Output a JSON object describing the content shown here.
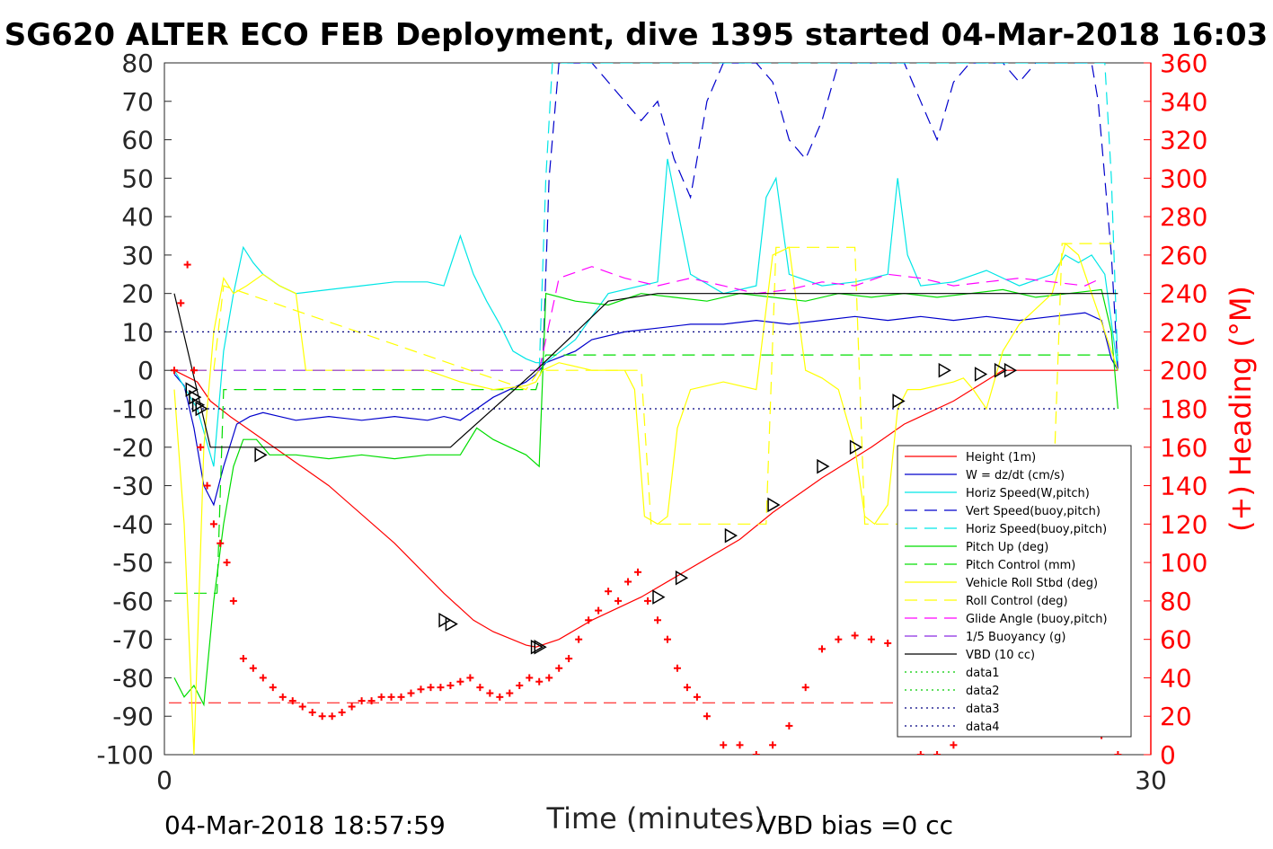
{
  "chart_data": {
    "type": "line",
    "title": "SG620 ALTER ECO FEB Deployment, dive 1395 started 04-Mar-2018 16:03",
    "xlabel": "Time (minutes)",
    "ylabel_right": "(+) Heading (°M)",
    "xlim": [
      0,
      30
    ],
    "ylim": [
      -100,
      80
    ],
    "ylim_right": [
      0,
      360
    ],
    "x_ticks": [
      "0",
      "30"
    ],
    "y_ticks": [
      "80",
      "70",
      "60",
      "50",
      "40",
      "30",
      "20",
      "10",
      "0",
      "-10",
      "-20",
      "-30",
      "-40",
      "-50",
      "-60",
      "-70",
      "-80",
      "-90",
      "-100"
    ],
    "y_ticks_right": [
      "360",
      "340",
      "320",
      "300",
      "280",
      "260",
      "240",
      "220",
      "200",
      "180",
      "160",
      "140",
      "120",
      "100",
      "80",
      "60",
      "40",
      "20",
      "0"
    ],
    "footer_left": "04-Mar-2018 18:57:59",
    "footer_right": "VBD bias =0 cc",
    "legend_position": "lower-right",
    "series": [
      {
        "name": "Height (1m)",
        "color": "#ff0000",
        "style": "solid",
        "x": [
          0.3,
          1.0,
          1.4,
          2.0,
          3.0,
          5.0,
          7.0,
          8.5,
          9.4,
          10.0,
          11.0,
          11.3,
          12.0,
          13.0,
          14.5,
          15.5,
          17.5,
          18.5,
          20.0,
          21.5,
          22.5,
          24.0,
          25.5,
          27.0,
          28.3,
          29.0
        ],
        "y": [
          0,
          -3,
          -8,
          -12,
          -18,
          -30,
          -45,
          -58,
          -65,
          -68,
          -71.5,
          -72,
          -70,
          -65,
          -59,
          -54,
          -44,
          -37,
          -28,
          -20,
          -14,
          -8,
          0,
          0,
          0,
          0
        ]
      },
      {
        "name": "W = dz/dt (cm/s)",
        "color": "#0000cc",
        "style": "solid",
        "x": [
          0.3,
          0.6,
          0.9,
          1.2,
          1.5,
          1.8,
          2.2,
          2.6,
          3.0,
          3.5,
          4.0,
          5,
          6,
          7,
          8,
          8.5,
          9.0,
          9.5,
          10,
          10.5,
          11,
          11.3,
          11.6,
          12.5,
          13,
          14,
          15,
          16,
          17,
          18,
          19,
          20,
          21,
          22,
          23,
          24,
          25,
          26,
          27,
          28,
          28.5,
          28.8,
          29.0
        ],
        "y": [
          -1,
          -4,
          -15,
          -30,
          -35,
          -25,
          -14,
          -12,
          -11,
          -12,
          -13,
          -12,
          -13,
          -12,
          -13,
          -12,
          -13,
          -10,
          -7,
          -5,
          -3,
          -1,
          2,
          5,
          8,
          10,
          11,
          12,
          12,
          13,
          12,
          13,
          14,
          13,
          14,
          13,
          14,
          13,
          14,
          15,
          13,
          3,
          0
        ]
      },
      {
        "name": "Horiz Speed(W,pitch)",
        "color": "#00e6e6",
        "style": "solid",
        "x": [
          0.3,
          1.0,
          1.5,
          1.8,
          2.1,
          2.4,
          2.7,
          3.0,
          3.5,
          4.0,
          5,
          6,
          7,
          8,
          8.5,
          9.0,
          9.4,
          9.8,
          10.2,
          10.6,
          11.0,
          11.3,
          11.6,
          12.5,
          13.5,
          14.5,
          15.0,
          15.3,
          16,
          17,
          18.0,
          18.3,
          18.6,
          19,
          20,
          21,
          22,
          22.3,
          22.6,
          23,
          24,
          25,
          26,
          27,
          27.4,
          27.8,
          28.2,
          28.6,
          29.0
        ],
        "y": [
          0,
          -10,
          -25,
          5,
          20,
          32,
          28,
          25,
          22,
          20,
          21,
          22,
          23,
          23,
          22,
          35,
          25,
          18,
          12,
          5,
          3,
          2,
          2,
          8,
          20,
          22,
          23,
          55,
          25,
          20,
          22,
          45,
          50,
          25,
          22,
          23,
          25,
          50,
          30,
          22,
          23,
          26,
          22,
          25,
          30,
          28,
          30,
          25,
          0
        ]
      },
      {
        "name": "Vert Speed(buoy,pitch)",
        "color": "#0000cc",
        "style": "dashed",
        "x": [
          11.5,
          11.7,
          12.0,
          12.5,
          13.0,
          13.5,
          14.0,
          14.5,
          15.0,
          15.5,
          16.0,
          16.5,
          17.0,
          17.5,
          18.0,
          18.5,
          19.0,
          19.5,
          20.0,
          20.5,
          21.0,
          21.5,
          22.0,
          22.5,
          23.0,
          23.5,
          24.0,
          24.5,
          25.0,
          25.5,
          26.0,
          26.5,
          27.0,
          27.5,
          28.0,
          28.2,
          28.4,
          28.6,
          28.8,
          29.0
        ],
        "y": [
          0,
          50,
          85,
          90,
          80,
          75,
          70,
          65,
          70,
          55,
          45,
          70,
          85,
          90,
          80,
          75,
          60,
          55,
          65,
          85,
          95,
          90,
          85,
          80,
          70,
          60,
          75,
          85,
          90,
          85,
          75,
          80,
          85,
          90,
          85,
          80,
          70,
          50,
          30,
          0
        ]
      },
      {
        "name": "Horiz Speed(buoy,pitch)",
        "color": "#00e6e6",
        "style": "dashed",
        "x": [
          11.4,
          11.6,
          11.8,
          28.6,
          28.8,
          29.0
        ],
        "y": [
          0,
          50,
          95,
          95,
          50,
          0
        ]
      },
      {
        "name": "Pitch Up (deg)",
        "color": "#00dd00",
        "style": "solid",
        "x": [
          0.3,
          0.6,
          0.9,
          1.2,
          1.5,
          1.8,
          2.1,
          2.4,
          2.8,
          3.2,
          4,
          5,
          6,
          7,
          8,
          9.0,
          9.5,
          10,
          10.5,
          11,
          11.4,
          11.6,
          12.5,
          13.5,
          14.5,
          15.5,
          16.5,
          17.5,
          18.5,
          19.5,
          20.5,
          21.5,
          22.5,
          23.5,
          24.5,
          25.5,
          26.5,
          27.5,
          28.5,
          28.8,
          29.0
        ],
        "y": [
          -80,
          -85,
          -82,
          -87,
          -60,
          -40,
          -25,
          -18,
          -18,
          -22,
          -22,
          -23,
          -22,
          -23,
          -22,
          -22,
          -15,
          -18,
          -20,
          -22,
          -25,
          20,
          18,
          17,
          20,
          19,
          18,
          20,
          19,
          18,
          20,
          19,
          20,
          19,
          20,
          21,
          19,
          20,
          21,
          10,
          -10
        ]
      },
      {
        "name": "Pitch Control (mm)",
        "color": "#00dd00",
        "style": "dashed",
        "x": [
          0.3,
          1.6,
          1.8,
          2.2,
          11.3,
          11.6,
          29.0
        ],
        "y": [
          -58,
          -58,
          -5,
          -5,
          -5,
          4,
          4
        ]
      },
      {
        "name": "Vehicle Roll Stbd (deg)",
        "color": "#ffff00",
        "style": "solid",
        "x": [
          0.3,
          0.6,
          0.9,
          1.2,
          1.5,
          1.8,
          2.1,
          2.5,
          3.0,
          3.5,
          4.0,
          4.3,
          5,
          6,
          7,
          8,
          9,
          10,
          11,
          11.3,
          11.5,
          12,
          13,
          14,
          14.3,
          14.6,
          15.0,
          15.3,
          15.6,
          16,
          17,
          18,
          18.5,
          19.0,
          19.5,
          20,
          20.5,
          21.0,
          21.3,
          21.6,
          22.0,
          22.3,
          22.6,
          23,
          24,
          24.3,
          24.6,
          25,
          25.5,
          26,
          27,
          27.4,
          27.8,
          28.2,
          28.6,
          29.0
        ],
        "y": [
          -5,
          -40,
          -100,
          -20,
          10,
          24,
          20,
          22,
          25,
          22,
          20,
          0,
          0,
          0,
          0,
          0,
          -3,
          -5,
          -4,
          -3,
          0,
          2,
          0,
          0,
          -5,
          -38,
          -40,
          -38,
          -15,
          -5,
          -3,
          -5,
          30,
          32,
          0,
          -2,
          -5,
          -20,
          -38,
          -40,
          -35,
          -10,
          -5,
          -5,
          -3,
          -2,
          -5,
          -10,
          5,
          12,
          20,
          33,
          30,
          20,
          10,
          0
        ]
      },
      {
        "name": "Roll Control (deg)",
        "color": "#ffff00",
        "style": "dashed",
        "x": [
          0.3,
          1.5,
          1.8,
          11.0,
          11.4,
          14.5,
          14.8,
          18.3,
          18.6,
          21.0,
          21.3,
          27.0,
          27.3,
          29.0
        ],
        "y": [
          0,
          0,
          22,
          -5,
          0,
          0,
          -40,
          -40,
          32,
          32,
          -40,
          -40,
          33,
          33
        ]
      },
      {
        "name": "Glide Angle (buoy,pitch)",
        "color": "#ff00ff",
        "style": "dashed",
        "x": [
          11.4,
          12.0,
          13,
          14,
          15,
          16,
          17,
          18,
          19,
          20,
          21,
          22,
          23,
          24,
          25,
          26,
          27,
          28,
          28.5
        ],
        "y": [
          0,
          24,
          27,
          24,
          22,
          24,
          22,
          20,
          21,
          23,
          22,
          25,
          24,
          22,
          23,
          24,
          23,
          22,
          24
        ]
      },
      {
        "name": "1/5 Buoyancy (g)",
        "color": "#8a2be2",
        "style": "dashed",
        "x": [
          0.3,
          11.4
        ],
        "y": [
          0,
          0
        ]
      },
      {
        "name": "VBD (10 cc)",
        "color": "#000000",
        "style": "solid",
        "x": [
          0.3,
          1.4,
          8.7,
          11.3,
          13.5,
          15.0,
          29.0
        ],
        "y": [
          20,
          -20,
          -20,
          0,
          18,
          20,
          20
        ]
      },
      {
        "name": "data1",
        "color": "#00cc00",
        "style": "dotted",
        "x": [],
        "y": []
      },
      {
        "name": "data2",
        "color": "#00cc00",
        "style": "dotted",
        "x": [],
        "y": []
      },
      {
        "name": "data3",
        "color": "#000080",
        "style": "dotted",
        "x": [
          0,
          29
        ],
        "y": [
          10,
          10
        ]
      },
      {
        "name": "data4",
        "color": "#000080",
        "style": "dotted",
        "x": [
          0,
          29
        ],
        "y": [
          -10,
          -10
        ]
      }
    ],
    "heading_points": {
      "color": "#ff0000",
      "x": [
        0.3,
        0.5,
        0.7,
        0.9,
        1.1,
        1.3,
        1.5,
        1.7,
        1.9,
        2.1,
        2.4,
        2.7,
        3.0,
        3.3,
        3.6,
        3.9,
        4.2,
        4.5,
        4.8,
        5.1,
        5.4,
        5.7,
        6,
        6.3,
        6.6,
        6.9,
        7.2,
        7.5,
        7.8,
        8.1,
        8.4,
        8.7,
        9.0,
        9.3,
        9.6,
        9.9,
        10.2,
        10.5,
        10.8,
        11.1,
        11.4,
        11.7,
        12,
        12.3,
        12.6,
        12.9,
        13.2,
        13.5,
        13.8,
        14.1,
        14.4,
        14.7,
        15.0,
        15.3,
        15.6,
        15.9,
        16.2,
        16.5,
        17,
        17.5,
        18,
        18.5,
        19,
        19.5,
        20,
        20.5,
        21,
        21.5,
        22,
        22.5,
        23,
        23.5,
        24,
        24.5,
        25,
        25.5,
        26,
        26.5,
        27,
        27.5,
        28,
        28.5,
        29.0
      ],
      "y": [
        200,
        235,
        255,
        200,
        160,
        140,
        120,
        110,
        100,
        80,
        50,
        45,
        40,
        35,
        30,
        28,
        25,
        22,
        20,
        20,
        22,
        25,
        28,
        28,
        30,
        30,
        30,
        32,
        34,
        35,
        35,
        36,
        38,
        40,
        35,
        32,
        30,
        32,
        36,
        40,
        38,
        40,
        45,
        50,
        60,
        70,
        75,
        85,
        80,
        90,
        95,
        80,
        70,
        60,
        45,
        35,
        30,
        20,
        5,
        5,
        0,
        5,
        15,
        35,
        55,
        60,
        62,
        60,
        58,
        30,
        0,
        0,
        5,
        20,
        40,
        55,
        60,
        58,
        40,
        30,
        20,
        10,
        0
      ]
    },
    "triangle_markers": {
      "x": [
        0.8,
        0.9,
        1.0,
        1.1,
        2.9,
        8.5,
        8.7,
        11.3,
        11.4,
        15.0,
        15.7,
        17.2,
        18.5,
        20.0,
        21.0,
        22.3,
        23.7,
        24.8,
        25.4,
        25.7
      ],
      "y": [
        -5,
        -7,
        -9,
        -10,
        -22,
        -65,
        -66,
        -72,
        -72,
        -59,
        -54,
        -43,
        -35,
        -25,
        -20,
        -8,
        0,
        -1,
        0,
        0
      ]
    }
  }
}
